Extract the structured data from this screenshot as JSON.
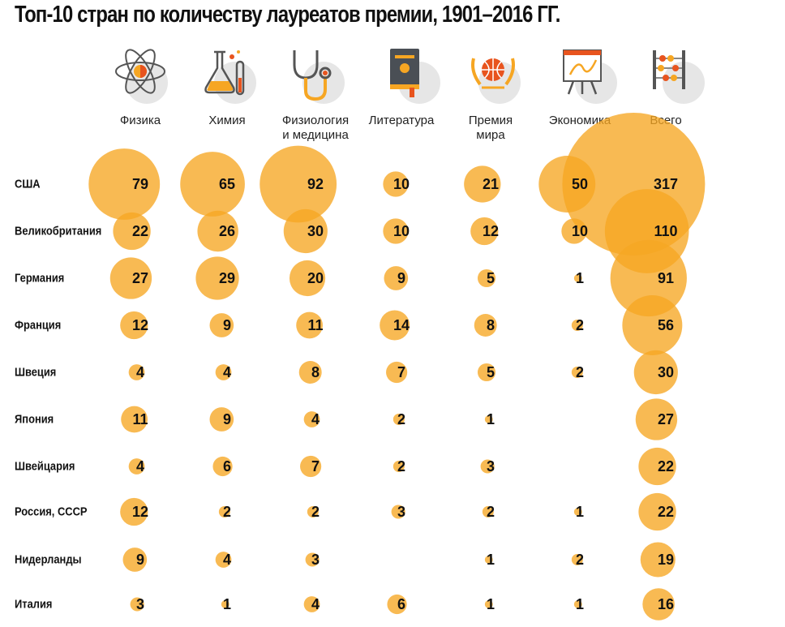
{
  "title": "Топ-10 стран по количеству лауреатов премии, 1901–2016 ГГ.",
  "chart_data": {
    "type": "bubble-matrix",
    "title": "Топ-10 стран по количеству лауреатов премии, 1901–2016 ГГ.",
    "columns": [
      {
        "key": "physics",
        "label": "Физика",
        "icon": "atom-icon"
      },
      {
        "key": "chemistry",
        "label": "Химия",
        "icon": "flask-icon"
      },
      {
        "key": "medicine",
        "label": "Физиология\nи медицина",
        "icon": "stethoscope-icon"
      },
      {
        "key": "literature",
        "label": "Литература",
        "icon": "book-icon"
      },
      {
        "key": "peace",
        "label": "Премия\nмира",
        "icon": "laurel-globe-icon"
      },
      {
        "key": "economics",
        "label": "Экономика",
        "icon": "chart-board-icon"
      },
      {
        "key": "total",
        "label": "Всего",
        "icon": "abacus-icon"
      }
    ],
    "rows": [
      {
        "country": "США",
        "values": [
          79,
          65,
          92,
          10,
          21,
          50,
          317
        ]
      },
      {
        "country": "Великобритания",
        "values": [
          22,
          26,
          30,
          10,
          12,
          10,
          110
        ]
      },
      {
        "country": "Германия",
        "values": [
          27,
          29,
          20,
          9,
          5,
          1,
          91
        ]
      },
      {
        "country": "Франция",
        "values": [
          12,
          9,
          11,
          14,
          8,
          2,
          56
        ]
      },
      {
        "country": "Швеция",
        "values": [
          4,
          4,
          8,
          7,
          5,
          2,
          30
        ]
      },
      {
        "country": "Япония",
        "values": [
          11,
          9,
          4,
          2,
          1,
          null,
          27
        ]
      },
      {
        "country": "Швейцария",
        "values": [
          4,
          6,
          7,
          2,
          3,
          null,
          22
        ]
      },
      {
        "country": "Россия, СССР",
        "values": [
          12,
          2,
          2,
          3,
          2,
          1,
          22
        ]
      },
      {
        "country": "Нидерланды",
        "values": [
          9,
          4,
          3,
          null,
          1,
          2,
          19
        ]
      },
      {
        "country": "Италия",
        "values": [
          3,
          1,
          4,
          6,
          1,
          1,
          16
        ]
      }
    ],
    "bubble_color": "#f6a623",
    "size_encoding": "area proportional to value"
  }
}
